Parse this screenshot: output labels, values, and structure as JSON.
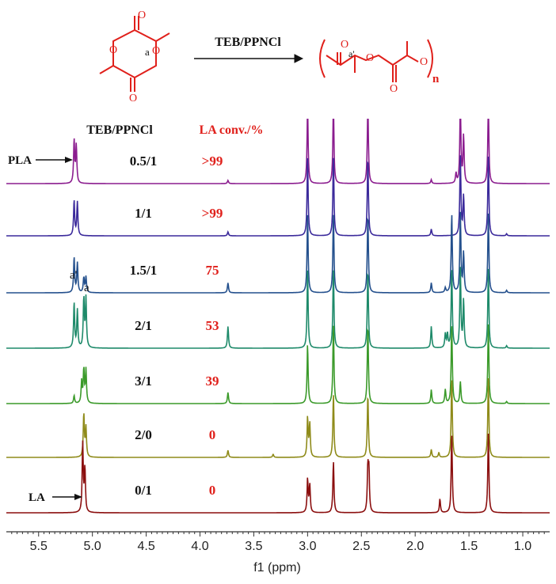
{
  "scheme": {
    "reagent": "TEB/PPNCl",
    "label_a": "a",
    "label_a_prime": "a'",
    "label_n": "n",
    "label_o": "O",
    "color": "#e0201b"
  },
  "chart_data": {
    "type": "line",
    "title": "",
    "xlabel": "f1 (ppm)",
    "ylabel": "",
    "xlim": [
      5.8,
      0.75
    ],
    "x_reversed": true,
    "x_ticks": [
      "5.5",
      "5.0",
      "4.5",
      "4.0",
      "3.5",
      "3.0",
      "2.5",
      "2.0",
      "1.5",
      "1.0"
    ],
    "x_tick_values": [
      5.5,
      5.0,
      4.5,
      4.0,
      3.5,
      3.0,
      2.5,
      2.0,
      1.5,
      1.0
    ],
    "header_ratio": "TEB/PPNCl",
    "header_conv": "LA conv./%",
    "annotation_pla": "PLA",
    "annotation_la": "LA",
    "peak_label_a_prime": "a'",
    "peak_label_a": "a",
    "series": [
      {
        "ratio": "0.5/1",
        "conv": ">99",
        "color": "#8b1d8f",
        "peaks": [
          [
            5.17,
            1.1
          ],
          [
            5.15,
            0.95
          ],
          [
            3.74,
            0.08
          ],
          [
            3.0,
            2.0
          ],
          [
            2.76,
            2.0
          ],
          [
            2.44,
            2.0
          ],
          [
            1.85,
            0.1
          ],
          [
            1.62,
            0.25
          ],
          [
            1.58,
            2.0
          ],
          [
            1.55,
            1.2
          ],
          [
            1.32,
            2.0
          ]
        ]
      },
      {
        "ratio": "1/1",
        "conv": ">99",
        "color": "#3b2a9b",
        "peaks": [
          [
            5.17,
            0.9
          ],
          [
            5.14,
            0.85
          ],
          [
            3.74,
            0.1
          ],
          [
            3.0,
            2.0
          ],
          [
            2.76,
            2.0
          ],
          [
            2.44,
            2.0
          ],
          [
            1.85,
            0.17
          ],
          [
            1.58,
            2.0
          ],
          [
            1.55,
            1.0
          ],
          [
            1.32,
            2.0
          ],
          [
            1.15,
            0.05
          ]
        ]
      },
      {
        "ratio": "1.5/1",
        "conv": "75",
        "color": "#24508d",
        "peaks": [
          [
            5.17,
            0.9
          ],
          [
            5.14,
            0.75
          ],
          [
            5.08,
            0.38
          ],
          [
            5.06,
            0.4
          ],
          [
            3.74,
            0.25
          ],
          [
            3.0,
            2.0
          ],
          [
            2.76,
            2.0
          ],
          [
            2.44,
            2.0
          ],
          [
            1.85,
            0.25
          ],
          [
            1.72,
            0.12
          ],
          [
            1.66,
            2.0
          ],
          [
            1.58,
            2.0
          ],
          [
            1.55,
            1.0
          ],
          [
            1.32,
            2.0
          ],
          [
            1.15,
            0.06
          ]
        ]
      },
      {
        "ratio": "2/1",
        "conv": "53",
        "color": "#1e8a6a",
        "peaks": [
          [
            5.17,
            1.15
          ],
          [
            5.14,
            0.95
          ],
          [
            5.08,
            1.25
          ],
          [
            5.06,
            1.25
          ],
          [
            3.74,
            0.55
          ],
          [
            3.0,
            2.0
          ],
          [
            2.76,
            2.0
          ],
          [
            2.44,
            2.0
          ],
          [
            1.85,
            0.55
          ],
          [
            1.72,
            0.35
          ],
          [
            1.7,
            0.35
          ],
          [
            1.66,
            2.0
          ],
          [
            1.58,
            2.0
          ],
          [
            1.55,
            1.2
          ],
          [
            1.32,
            2.0
          ],
          [
            1.15,
            0.06
          ]
        ]
      },
      {
        "ratio": "3/1",
        "conv": "39",
        "color": "#3b9a2a",
        "peaks": [
          [
            5.17,
            0.2
          ],
          [
            5.1,
            0.55
          ],
          [
            5.08,
            0.85
          ],
          [
            5.06,
            0.85
          ],
          [
            3.74,
            0.28
          ],
          [
            3.0,
            1.5
          ],
          [
            2.76,
            2.0
          ],
          [
            2.44,
            2.0
          ],
          [
            1.85,
            0.35
          ],
          [
            1.72,
            0.35
          ],
          [
            1.66,
            2.0
          ],
          [
            1.58,
            0.55
          ],
          [
            1.32,
            2.0
          ],
          [
            1.15,
            0.05
          ]
        ]
      },
      {
        "ratio": "2/0",
        "conv": "0",
        "color": "#8f8b1a",
        "peaks": [
          [
            5.08,
            1.1
          ],
          [
            5.06,
            0.75
          ],
          [
            3.74,
            0.18
          ],
          [
            3.32,
            0.08
          ],
          [
            3.0,
            1.0
          ],
          [
            2.98,
            0.85
          ],
          [
            2.76,
            1.6
          ],
          [
            2.44,
            1.6
          ],
          [
            1.85,
            0.2
          ],
          [
            1.78,
            0.12
          ],
          [
            1.66,
            2.0
          ],
          [
            1.32,
            2.0
          ]
        ]
      },
      {
        "ratio": "0/1",
        "conv": "0",
        "color": "#8b0f0f",
        "peaks": [
          [
            5.09,
            1.75
          ],
          [
            5.07,
            1.1
          ],
          [
            3.0,
            0.85
          ],
          [
            2.98,
            0.7
          ],
          [
            2.76,
            1.3
          ],
          [
            2.44,
            1.1
          ],
          [
            2.43,
            1.0
          ],
          [
            1.77,
            0.35
          ],
          [
            1.66,
            2.0
          ],
          [
            1.32,
            2.0
          ]
        ]
      }
    ]
  }
}
